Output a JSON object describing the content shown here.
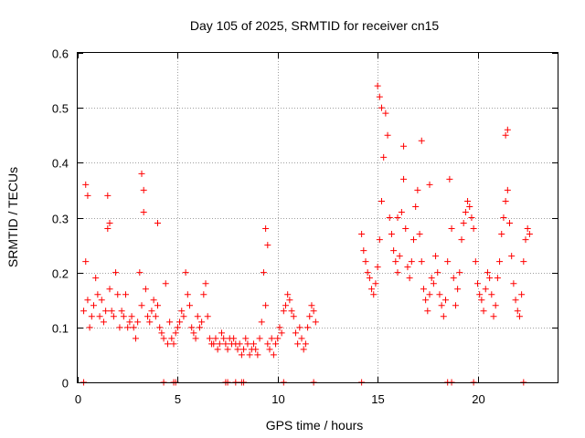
{
  "chart_data": {
    "type": "scatter",
    "title": "Day 105 of 2025, SRMTID for receiver cn15",
    "xlabel": "GPS time / hours",
    "ylabel": "SRMTID / TECUs",
    "xlim": [
      0,
      24
    ],
    "ylim": [
      0,
      0.6
    ],
    "xticks": [
      0,
      5,
      10,
      15,
      20
    ],
    "xtick_labels": [
      "0",
      "5",
      "10",
      "15",
      "20"
    ],
    "yticks": [
      0,
      0.1,
      0.2,
      0.3,
      0.4,
      0.5,
      0.6
    ],
    "ytick_labels": [
      "0",
      "0.1",
      "0.2",
      "0.3",
      "0.4",
      "0.5",
      "0.6"
    ],
    "grid": true,
    "marker": "+",
    "color": "#ff0000",
    "series": [
      {
        "name": "SRMTID",
        "x": [
          0.3,
          0.4,
          0.5,
          0.6,
          0.7,
          0.8,
          0.9,
          1.0,
          1.1,
          1.2,
          1.3,
          1.4,
          1.5,
          1.6,
          1.7,
          1.8,
          1.9,
          2.0,
          2.1,
          2.2,
          2.3,
          2.4,
          2.5,
          2.6,
          2.7,
          2.8,
          2.9,
          3.0,
          3.1,
          3.2,
          3.3,
          3.4,
          3.5,
          3.6,
          3.7,
          3.8,
          3.9,
          4.0,
          4.1,
          4.2,
          4.3,
          4.4,
          4.5,
          4.6,
          4.7,
          4.8,
          4.9,
          5.0,
          5.1,
          5.2,
          5.3,
          5.4,
          5.5,
          5.6,
          5.7,
          5.8,
          5.9,
          6.0,
          6.1,
          6.2,
          6.3,
          6.4,
          6.5,
          6.6,
          6.7,
          6.8,
          6.9,
          7.0,
          7.1,
          7.2,
          7.3,
          7.4,
          7.5,
          7.6,
          7.7,
          7.8,
          7.9,
          8.0,
          8.1,
          8.2,
          8.3,
          8.4,
          8.5,
          8.6,
          8.7,
          8.8,
          8.9,
          9.0,
          9.1,
          9.2,
          9.3,
          9.4,
          9.5,
          9.6,
          9.7,
          9.8,
          9.9,
          10.0,
          10.1,
          10.2,
          10.3,
          10.4,
          10.5,
          10.6,
          10.7,
          10.8,
          10.9,
          11.0,
          11.1,
          11.2,
          11.3,
          11.4,
          11.5,
          11.6,
          11.7,
          11.8,
          11.9,
          14.2,
          14.3,
          14.4,
          14.5,
          14.6,
          14.7,
          14.8,
          14.9,
          15.0,
          15.1,
          15.2,
          15.3,
          15.4,
          15.5,
          15.6,
          15.7,
          15.8,
          15.9,
          16.0,
          16.1,
          16.2,
          16.3,
          16.4,
          16.5,
          16.6,
          16.7,
          16.8,
          16.9,
          17.0,
          17.1,
          17.2,
          17.3,
          17.4,
          17.5,
          17.6,
          17.7,
          17.8,
          17.9,
          18.0,
          18.1,
          18.2,
          18.3,
          18.4,
          18.5,
          18.6,
          18.7,
          18.8,
          18.9,
          19.0,
          19.1,
          19.2,
          19.3,
          19.4,
          19.5,
          19.6,
          19.7,
          19.8,
          19.9,
          20.0,
          20.1,
          20.2,
          20.3,
          20.4,
          20.5,
          20.6,
          20.7,
          20.8,
          20.9,
          21.0,
          21.1,
          21.2,
          21.3,
          21.4,
          21.5,
          21.6,
          21.7,
          21.8,
          21.9,
          22.0,
          22.1,
          22.2,
          22.3,
          22.4,
          22.5,
          22.6,
          0.4,
          0.5,
          1.5,
          1.6,
          3.2,
          3.3,
          4.0,
          9.4,
          9.5,
          15.0,
          15.1,
          15.2,
          16.0,
          16.3,
          17.2,
          17.6,
          21.4,
          21.5,
          0.3,
          4.3,
          4.8,
          4.9,
          7.4,
          7.5,
          7.9,
          8.2,
          8.3,
          10.3,
          11.8,
          14.2,
          18.5,
          18.7,
          19.8,
          22.3
        ],
        "y": [
          0.13,
          0.22,
          0.15,
          0.1,
          0.12,
          0.14,
          0.19,
          0.16,
          0.12,
          0.15,
          0.11,
          0.13,
          0.28,
          0.17,
          0.13,
          0.12,
          0.2,
          0.16,
          0.1,
          0.13,
          0.12,
          0.16,
          0.1,
          0.11,
          0.12,
          0.1,
          0.08,
          0.11,
          0.2,
          0.14,
          0.31,
          0.17,
          0.12,
          0.11,
          0.13,
          0.15,
          0.12,
          0.14,
          0.1,
          0.09,
          0.08,
          0.18,
          0.07,
          0.11,
          0.08,
          0.07,
          0.09,
          0.1,
          0.11,
          0.13,
          0.12,
          0.2,
          0.16,
          0.14,
          0.1,
          0.09,
          0.08,
          0.12,
          0.1,
          0.11,
          0.16,
          0.18,
          0.12,
          0.08,
          0.07,
          0.07,
          0.08,
          0.06,
          0.07,
          0.09,
          0.08,
          0.07,
          0.06,
          0.08,
          0.07,
          0.08,
          0.07,
          0.06,
          0.07,
          0.05,
          0.06,
          0.08,
          0.07,
          0.05,
          0.06,
          0.07,
          0.06,
          0.05,
          0.08,
          0.11,
          0.2,
          0.14,
          0.07,
          0.06,
          0.08,
          0.05,
          0.07,
          0.08,
          0.1,
          0.09,
          0.13,
          0.14,
          0.16,
          0.15,
          0.13,
          0.12,
          0.09,
          0.07,
          0.1,
          0.08,
          0.06,
          0.07,
          0.1,
          0.12,
          0.14,
          0.13,
          0.11,
          0.27,
          0.24,
          0.22,
          0.2,
          0.19,
          0.17,
          0.16,
          0.18,
          0.21,
          0.26,
          0.33,
          0.41,
          0.49,
          0.45,
          0.3,
          0.27,
          0.24,
          0.22,
          0.2,
          0.23,
          0.31,
          0.37,
          0.28,
          0.21,
          0.19,
          0.22,
          0.26,
          0.32,
          0.35,
          0.27,
          0.22,
          0.17,
          0.15,
          0.13,
          0.16,
          0.19,
          0.18,
          0.23,
          0.2,
          0.16,
          0.14,
          0.12,
          0.15,
          0.22,
          0.37,
          0.28,
          0.19,
          0.14,
          0.17,
          0.2,
          0.26,
          0.29,
          0.31,
          0.33,
          0.32,
          0.3,
          0.28,
          0.22,
          0.18,
          0.16,
          0.15,
          0.13,
          0.17,
          0.2,
          0.19,
          0.16,
          0.12,
          0.14,
          0.19,
          0.22,
          0.27,
          0.3,
          0.33,
          0.35,
          0.29,
          0.23,
          0.18,
          0.15,
          0.13,
          0.12,
          0.16,
          0.22,
          0.26,
          0.28,
          0.27,
          0.36,
          0.34,
          0.34,
          0.29,
          0.38,
          0.35,
          0.29,
          0.28,
          0.25,
          0.54,
          0.52,
          0.5,
          0.3,
          0.43,
          0.44,
          0.36,
          0.45,
          0.46,
          0.0,
          0.0,
          0.0,
          0.0,
          0.0,
          0.0,
          0.0,
          0.0,
          0.0,
          0.0,
          0.0,
          0.0,
          0.0,
          0.0,
          0.0,
          0.0
        ]
      }
    ]
  }
}
